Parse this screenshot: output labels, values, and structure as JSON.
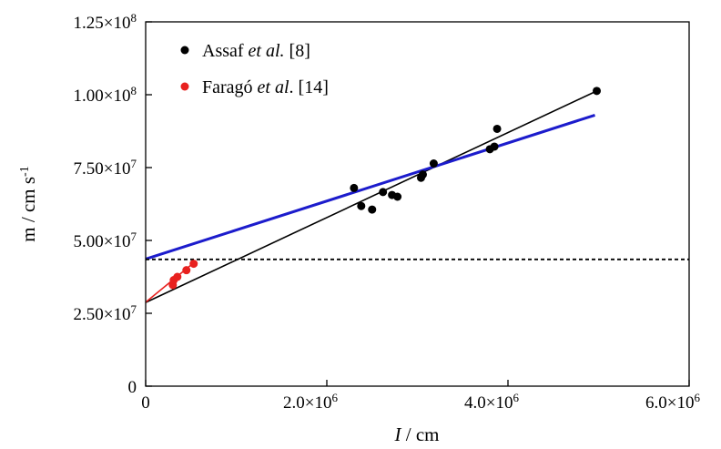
{
  "chart_data": {
    "type": "scatter",
    "title": "",
    "xlabel": "I / cm",
    "xlabel_italic_part": "I",
    "xlabel_rest": " / cm",
    "ylabel": "m / cm s-1",
    "ylabel_main": "m / cm s",
    "ylabel_sup": "-1",
    "xlim": [
      0,
      6000000
    ],
    "ylim": [
      0,
      125000000
    ],
    "x_ticks": [
      {
        "value": 0,
        "label": "0",
        "mantissa": "",
        "exponent": ""
      },
      {
        "value": 2000000,
        "label": "2.0×10^6",
        "mantissa": "2.0",
        "exponent": "6"
      },
      {
        "value": 4000000,
        "label": "4.0×10^6",
        "mantissa": "4.0",
        "exponent": "6"
      },
      {
        "value": 6000000,
        "label": "6.0×10^6",
        "mantissa": "6.0",
        "exponent": "6"
      }
    ],
    "y_ticks": [
      {
        "value": 0,
        "label": "0",
        "mantissa": "",
        "exponent": ""
      },
      {
        "value": 25000000,
        "label": "2.50×10^7",
        "mantissa": "2.50",
        "exponent": "7"
      },
      {
        "value": 50000000,
        "label": "5.00×10^7",
        "mantissa": "5.00",
        "exponent": "7"
      },
      {
        "value": 75000000,
        "label": "7.50×10^7",
        "mantissa": "7.50",
        "exponent": "7"
      },
      {
        "value": 100000000,
        "label": "1.00×10^8",
        "mantissa": "1.00",
        "exponent": "8"
      },
      {
        "value": 125000000,
        "label": "1.25×10^8",
        "mantissa": "1.25",
        "exponent": "8"
      }
    ],
    "grid": false,
    "legend_position": "top-left",
    "series": [
      {
        "name": "Assaf et al. [8]",
        "legend_parts": [
          "Assaf ",
          "et al.",
          " [8]"
        ],
        "color": "#000000",
        "points": [
          {
            "x": 2300000,
            "y": 68000000
          },
          {
            "x": 2380000,
            "y": 61800000
          },
          {
            "x": 2500000,
            "y": 60600000
          },
          {
            "x": 2620000,
            "y": 66600000
          },
          {
            "x": 2720000,
            "y": 65600000
          },
          {
            "x": 2780000,
            "y": 65000000
          },
          {
            "x": 3040000,
            "y": 71500000
          },
          {
            "x": 3060000,
            "y": 72600000
          },
          {
            "x": 3180000,
            "y": 76400000
          },
          {
            "x": 3800000,
            "y": 81300000
          },
          {
            "x": 3850000,
            "y": 82200000
          },
          {
            "x": 3880000,
            "y": 88300000
          },
          {
            "x": 4980000,
            "y": 101300000
          }
        ]
      },
      {
        "name": "Faragó et al. [14]",
        "legend_parts": [
          "Faragó ",
          "et al",
          ". [14]"
        ],
        "color": "#e8211f",
        "points": [
          {
            "x": 300000,
            "y": 34700000
          },
          {
            "x": 310000,
            "y": 36400000
          },
          {
            "x": 350000,
            "y": 37500000
          },
          {
            "x": 450000,
            "y": 39800000
          },
          {
            "x": 530000,
            "y": 42000000
          }
        ]
      }
    ],
    "lines": [
      {
        "name": "Assaf fit",
        "color": "#000000",
        "style": "solid",
        "x": [
          0,
          4980000
        ],
        "y": [
          28700000,
          101300000
        ]
      },
      {
        "name": "Faragó fit",
        "color": "#e8211f",
        "style": "solid",
        "x": [
          0,
          530000
        ],
        "y": [
          28800000,
          42300000
        ]
      },
      {
        "name": "Blue fit",
        "color": "#1c1ccc",
        "style": "solid",
        "x": [
          0,
          4960000
        ],
        "y": [
          43600000,
          93000000
        ]
      },
      {
        "name": "Horizontal reference",
        "color": "#000000",
        "style": "dashed",
        "x": [
          0,
          6000000
        ],
        "y": [
          43500000,
          43500000
        ]
      }
    ]
  }
}
